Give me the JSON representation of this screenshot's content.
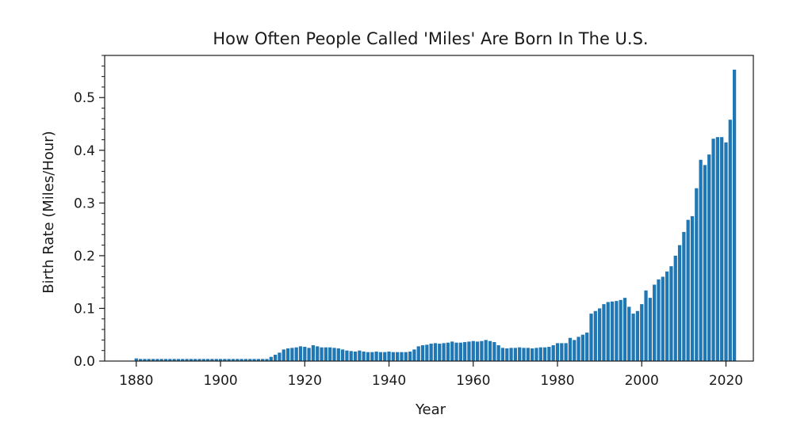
{
  "chart_data": {
    "type": "bar",
    "title": "How Often People Called 'Miles' Are Born In The U.S.",
    "xlabel": "Year",
    "ylabel": "Birth Rate (Miles/Hour)",
    "xlim": [
      1872.5,
      2026.5
    ],
    "ylim": [
      0,
      0.58
    ],
    "xticks": [
      1880,
      1900,
      1920,
      1940,
      1960,
      1980,
      2000,
      2020
    ],
    "yticks": [
      0.0,
      0.1,
      0.2,
      0.3,
      0.4,
      0.5
    ],
    "ytick_labels": [
      "0.0",
      "0.1",
      "0.2",
      "0.3",
      "0.4",
      "0.5"
    ],
    "y_minor_step": 0.02,
    "bar_color": "#1f77b4",
    "grid": false,
    "legend": "none",
    "series": [
      {
        "start_year": 1880,
        "values": [
          0.005,
          0.004,
          0.004,
          0.004,
          0.004,
          0.004,
          0.004,
          0.004,
          0.004,
          0.004,
          0.004,
          0.004,
          0.004,
          0.004,
          0.004,
          0.004,
          0.004,
          0.004,
          0.004,
          0.004,
          0.004,
          0.004,
          0.004,
          0.004,
          0.004,
          0.004,
          0.004,
          0.004,
          0.004,
          0.004,
          0.004,
          0.004,
          0.008,
          0.012,
          0.016,
          0.022,
          0.024,
          0.025,
          0.026,
          0.028,
          0.027,
          0.025,
          0.03,
          0.028,
          0.026,
          0.026,
          0.026,
          0.025,
          0.024,
          0.022,
          0.02,
          0.019,
          0.018,
          0.02,
          0.018,
          0.017,
          0.017,
          0.018,
          0.017,
          0.017,
          0.018,
          0.017,
          0.017,
          0.017,
          0.017,
          0.018,
          0.022,
          0.028,
          0.03,
          0.031,
          0.033,
          0.034,
          0.033,
          0.034,
          0.035,
          0.037,
          0.035,
          0.035,
          0.036,
          0.037,
          0.038,
          0.037,
          0.038,
          0.04,
          0.038,
          0.036,
          0.03,
          0.025,
          0.024,
          0.025,
          0.025,
          0.026,
          0.025,
          0.025,
          0.024,
          0.025,
          0.026,
          0.026,
          0.027,
          0.03,
          0.034,
          0.034,
          0.034,
          0.044,
          0.04,
          0.046,
          0.05,
          0.054,
          0.09,
          0.095,
          0.1,
          0.108,
          0.112,
          0.113,
          0.114,
          0.116,
          0.12,
          0.103,
          0.09,
          0.095,
          0.108,
          0.134,
          0.12,
          0.145,
          0.155,
          0.16,
          0.17,
          0.18,
          0.2,
          0.22,
          0.245,
          0.268,
          0.275,
          0.328,
          0.382,
          0.372,
          0.392,
          0.422,
          0.425,
          0.425,
          0.415,
          0.458,
          0.553
        ]
      }
    ]
  }
}
